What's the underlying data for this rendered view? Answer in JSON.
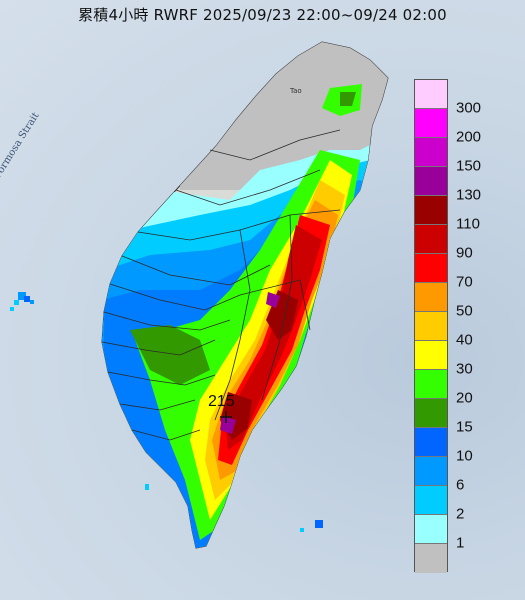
{
  "title": "累積4小時 RWRF 2025/09/23 22:00~09/24 02:00",
  "map": {
    "strait_label": "Formosa Strait",
    "place_label": "Tao",
    "max_value_label": "215"
  },
  "legend": [
    {
      "label": "300",
      "color": "#ffccff"
    },
    {
      "label": "200",
      "color": "#ff00ff"
    },
    {
      "label": "150",
      "color": "#cc00cc"
    },
    {
      "label": "130",
      "color": "#990099"
    },
    {
      "label": "110",
      "color": "#990000"
    },
    {
      "label": "90",
      "color": "#cc0000"
    },
    {
      "label": "70",
      "color": "#ff0000"
    },
    {
      "label": "50",
      "color": "#ff9900"
    },
    {
      "label": "40",
      "color": "#ffcc00"
    },
    {
      "label": "30",
      "color": "#ffff00"
    },
    {
      "label": "20",
      "color": "#33ff00"
    },
    {
      "label": "15",
      "color": "#339900"
    },
    {
      "label": "10",
      "color": "#0066ff"
    },
    {
      "label": "6",
      "color": "#0099ff"
    },
    {
      "label": "2",
      "color": "#00ccff"
    },
    {
      "label": "1",
      "color": "#99ffff"
    },
    {
      "label": "",
      "color": "#c0c0c0"
    }
  ]
}
